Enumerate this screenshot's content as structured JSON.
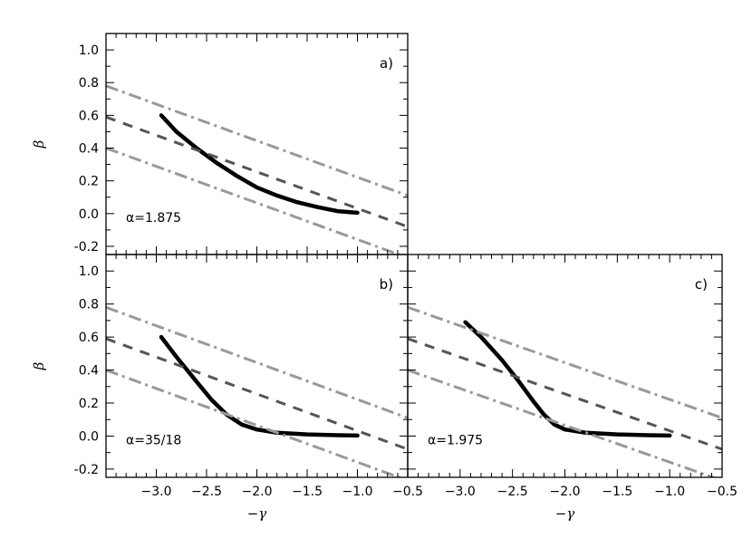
{
  "chart_data": [
    {
      "type": "line",
      "panel": "a)",
      "annotation": "α=1.875",
      "xlabel": "",
      "ylabel": "β",
      "xlim": [
        -3.5,
        -0.5
      ],
      "ylim": [
        -0.25,
        1.1
      ],
      "xticks": [],
      "yticks": [
        "-0.2",
        "0.0",
        "0.2",
        "0.4",
        "0.6",
        "0.8",
        "1.0"
      ],
      "series": [
        {
          "style": "solid",
          "x": [
            -2.95,
            -2.8,
            -2.6,
            -2.4,
            -2.2,
            -2.0,
            -1.8,
            -1.6,
            -1.4,
            -1.2,
            -1.0
          ],
          "y": [
            0.6,
            0.5,
            0.4,
            0.31,
            0.23,
            0.16,
            0.11,
            0.07,
            0.04,
            0.015,
            0.005
          ]
        },
        {
          "style": "dash-dot-upper",
          "x": [
            -3.5,
            -0.5
          ],
          "y": [
            0.78,
            0.11
          ]
        },
        {
          "style": "dashed",
          "x": [
            -3.5,
            -0.5
          ],
          "y": [
            0.59,
            -0.08
          ]
        },
        {
          "style": "dash-dot-lower",
          "x": [
            -3.5,
            -0.5
          ],
          "y": [
            0.4,
            -0.27
          ]
        }
      ]
    },
    {
      "type": "line",
      "panel": "b)",
      "annotation": "α=35/18",
      "xlabel": "−γ",
      "ylabel": "β",
      "xlim": [
        -3.5,
        -0.5
      ],
      "ylim": [
        -0.25,
        1.1
      ],
      "xticks": [
        "−3.0",
        "−2.5",
        "−2.0",
        "−1.5",
        "−1.0",
        "−0.5"
      ],
      "yticks": [
        "-0.2",
        "0.0",
        "0.2",
        "0.4",
        "0.6",
        "0.8",
        "1.0"
      ],
      "series": [
        {
          "style": "solid",
          "x": [
            -2.95,
            -2.8,
            -2.6,
            -2.45,
            -2.3,
            -2.15,
            -2.0,
            -1.8,
            -1.5,
            -1.2,
            -1.0
          ],
          "y": [
            0.6,
            0.48,
            0.33,
            0.22,
            0.13,
            0.07,
            0.04,
            0.02,
            0.01,
            0.005,
            0.003
          ]
        },
        {
          "style": "dash-dot-upper",
          "x": [
            -3.5,
            -0.5
          ],
          "y": [
            0.78,
            0.11
          ]
        },
        {
          "style": "dashed",
          "x": [
            -3.5,
            -0.5
          ],
          "y": [
            0.59,
            -0.08
          ]
        },
        {
          "style": "dash-dot-lower",
          "x": [
            -3.5,
            -0.5
          ],
          "y": [
            0.4,
            -0.27
          ]
        }
      ]
    },
    {
      "type": "line",
      "panel": "c)",
      "annotation": "α=1.975",
      "xlabel": "−γ",
      "ylabel": "",
      "xlim": [
        -3.5,
        -0.5
      ],
      "ylim": [
        -0.25,
        1.1
      ],
      "xticks": [
        "−3.0",
        "−2.5",
        "−2.0",
        "−1.5",
        "−1.0",
        "−0.5"
      ],
      "yticks": [],
      "series": [
        {
          "style": "solid",
          "x": [
            -2.95,
            -2.8,
            -2.6,
            -2.45,
            -2.3,
            -2.2,
            -2.1,
            -2.0,
            -1.8,
            -1.5,
            -1.2,
            -1.0
          ],
          "y": [
            0.69,
            0.6,
            0.46,
            0.34,
            0.21,
            0.13,
            0.07,
            0.04,
            0.02,
            0.01,
            0.005,
            0.003
          ]
        },
        {
          "style": "dash-dot-upper",
          "x": [
            -3.5,
            -0.5
          ],
          "y": [
            0.78,
            0.11
          ]
        },
        {
          "style": "dashed",
          "x": [
            -3.5,
            -0.5
          ],
          "y": [
            0.59,
            -0.08
          ]
        },
        {
          "style": "dash-dot-lower",
          "x": [
            -3.5,
            -0.5
          ],
          "y": [
            0.4,
            -0.27
          ]
        }
      ]
    }
  ],
  "colors": {
    "frame": "#000000",
    "solid": "#000000",
    "dashed": "#555555",
    "dash_dot": "#999999"
  }
}
